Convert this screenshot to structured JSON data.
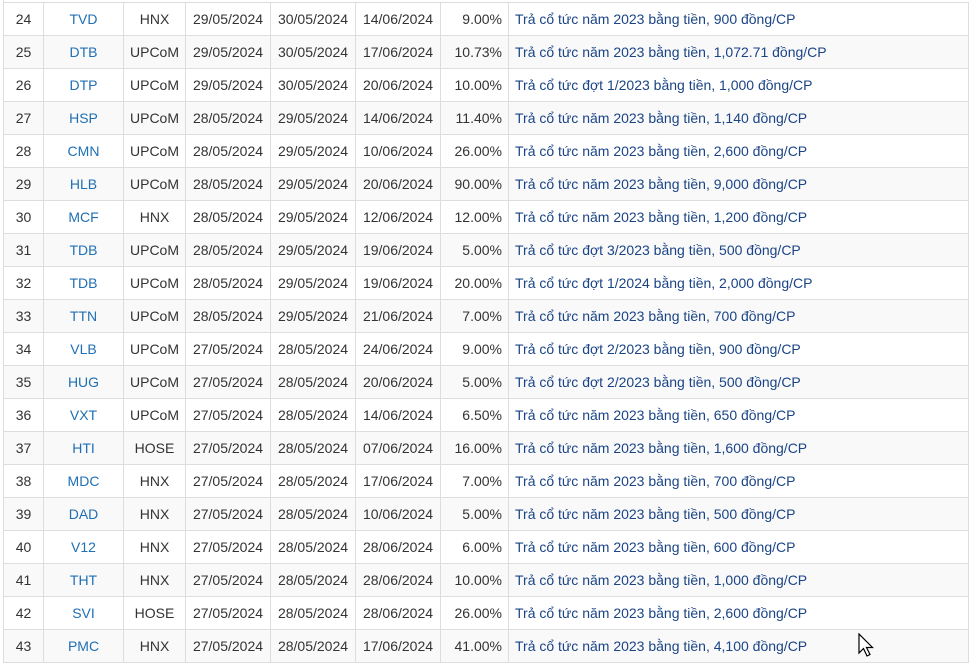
{
  "rows": [
    {
      "no": "24",
      "code": "TVD",
      "exchange": "HNX",
      "ex_date": "29/05/2024",
      "record_date": "30/05/2024",
      "pay_date": "14/06/2024",
      "rate": "9.00%",
      "desc": "Trả cổ tức năm 2023 bằng tiền, 900 đồng/CP"
    },
    {
      "no": "25",
      "code": "DTB",
      "exchange": "UPCoM",
      "ex_date": "29/05/2024",
      "record_date": "30/05/2024",
      "pay_date": "17/06/2024",
      "rate": "10.73%",
      "desc": "Trả cổ tức năm 2023 bằng tiền, 1,072.71 đồng/CP"
    },
    {
      "no": "26",
      "code": "DTP",
      "exchange": "UPCoM",
      "ex_date": "29/05/2024",
      "record_date": "30/05/2024",
      "pay_date": "20/06/2024",
      "rate": "10.00%",
      "desc": "Trả cổ tức đợt 1/2023 bằng tiền, 1,000 đồng/CP"
    },
    {
      "no": "27",
      "code": "HSP",
      "exchange": "UPCoM",
      "ex_date": "28/05/2024",
      "record_date": "29/05/2024",
      "pay_date": "14/06/2024",
      "rate": "11.40%",
      "desc": "Trả cổ tức năm 2023 bằng tiền, 1,140 đồng/CP"
    },
    {
      "no": "28",
      "code": "CMN",
      "exchange": "UPCoM",
      "ex_date": "28/05/2024",
      "record_date": "29/05/2024",
      "pay_date": "10/06/2024",
      "rate": "26.00%",
      "desc": "Trả cổ tức năm 2023 bằng tiền, 2,600 đồng/CP"
    },
    {
      "no": "29",
      "code": "HLB",
      "exchange": "UPCoM",
      "ex_date": "28/05/2024",
      "record_date": "29/05/2024",
      "pay_date": "20/06/2024",
      "rate": "90.00%",
      "desc": "Trả cổ tức năm 2023 bằng tiền, 9,000 đồng/CP"
    },
    {
      "no": "30",
      "code": "MCF",
      "exchange": "HNX",
      "ex_date": "28/05/2024",
      "record_date": "29/05/2024",
      "pay_date": "12/06/2024",
      "rate": "12.00%",
      "desc": "Trả cổ tức năm 2023 bằng tiền, 1,200 đồng/CP"
    },
    {
      "no": "31",
      "code": "TDB",
      "exchange": "UPCoM",
      "ex_date": "28/05/2024",
      "record_date": "29/05/2024",
      "pay_date": "19/06/2024",
      "rate": "5.00%",
      "desc": "Trả cổ tức đợt 3/2023 bằng tiền, 500 đồng/CP"
    },
    {
      "no": "32",
      "code": "TDB",
      "exchange": "UPCoM",
      "ex_date": "28/05/2024",
      "record_date": "29/05/2024",
      "pay_date": "19/06/2024",
      "rate": "20.00%",
      "desc": "Trả cổ tức đợt 1/2024 bằng tiền, 2,000 đồng/CP"
    },
    {
      "no": "33",
      "code": "TTN",
      "exchange": "UPCoM",
      "ex_date": "28/05/2024",
      "record_date": "29/05/2024",
      "pay_date": "21/06/2024",
      "rate": "7.00%",
      "desc": "Trả cổ tức năm 2023 bằng tiền, 700 đồng/CP"
    },
    {
      "no": "34",
      "code": "VLB",
      "exchange": "UPCoM",
      "ex_date": "27/05/2024",
      "record_date": "28/05/2024",
      "pay_date": "24/06/2024",
      "rate": "9.00%",
      "desc": "Trả cổ tức đợt 2/2023 bằng tiền, 900 đồng/CP"
    },
    {
      "no": "35",
      "code": "HUG",
      "exchange": "UPCoM",
      "ex_date": "27/05/2024",
      "record_date": "28/05/2024",
      "pay_date": "20/06/2024",
      "rate": "5.00%",
      "desc": "Trả cổ tức đợt 2/2023 bằng tiền, 500 đồng/CP"
    },
    {
      "no": "36",
      "code": "VXT",
      "exchange": "UPCoM",
      "ex_date": "27/05/2024",
      "record_date": "28/05/2024",
      "pay_date": "14/06/2024",
      "rate": "6.50%",
      "desc": "Trả cổ tức năm 2023 bằng tiền, 650 đồng/CP"
    },
    {
      "no": "37",
      "code": "HTI",
      "exchange": "HOSE",
      "ex_date": "27/05/2024",
      "record_date": "28/05/2024",
      "pay_date": "07/06/2024",
      "rate": "16.00%",
      "desc": "Trả cổ tức năm 2023 bằng tiền, 1,600 đồng/CP"
    },
    {
      "no": "38",
      "code": "MDC",
      "exchange": "HNX",
      "ex_date": "27/05/2024",
      "record_date": "28/05/2024",
      "pay_date": "17/06/2024",
      "rate": "7.00%",
      "desc": "Trả cổ tức năm 2023 bằng tiền, 700 đồng/CP"
    },
    {
      "no": "39",
      "code": "DAD",
      "exchange": "HNX",
      "ex_date": "27/05/2024",
      "record_date": "28/05/2024",
      "pay_date": "10/06/2024",
      "rate": "5.00%",
      "desc": "Trả cổ tức năm 2023 bằng tiền, 500 đồng/CP"
    },
    {
      "no": "40",
      "code": "V12",
      "exchange": "HNX",
      "ex_date": "27/05/2024",
      "record_date": "28/05/2024",
      "pay_date": "28/06/2024",
      "rate": "6.00%",
      "desc": "Trả cổ tức năm 2023 bằng tiền, 600 đồng/CP"
    },
    {
      "no": "41",
      "code": "THT",
      "exchange": "HNX",
      "ex_date": "27/05/2024",
      "record_date": "28/05/2024",
      "pay_date": "28/06/2024",
      "rate": "10.00%",
      "desc": "Trả cổ tức năm 2023 bằng tiền, 1,000 đồng/CP"
    },
    {
      "no": "42",
      "code": "SVI",
      "exchange": "HOSE",
      "ex_date": "27/05/2024",
      "record_date": "28/05/2024",
      "pay_date": "28/06/2024",
      "rate": "26.00%",
      "desc": "Trả cổ tức năm 2023 bằng tiền, 2,600 đồng/CP"
    },
    {
      "no": "43",
      "code": "PMC",
      "exchange": "HNX",
      "ex_date": "27/05/2024",
      "record_date": "28/05/2024",
      "pay_date": "17/06/2024",
      "rate": "41.00%",
      "desc": "Trả cổ tức năm 2023 bằng tiền, 4,100 đồng/CP"
    }
  ],
  "colors": {
    "code_link": "#1f6fb4",
    "desc_link": "#1a4486",
    "stripe": "#f9f9f9",
    "border": "#dddddd"
  },
  "cursor_icon": "mouse-pointer-icon"
}
